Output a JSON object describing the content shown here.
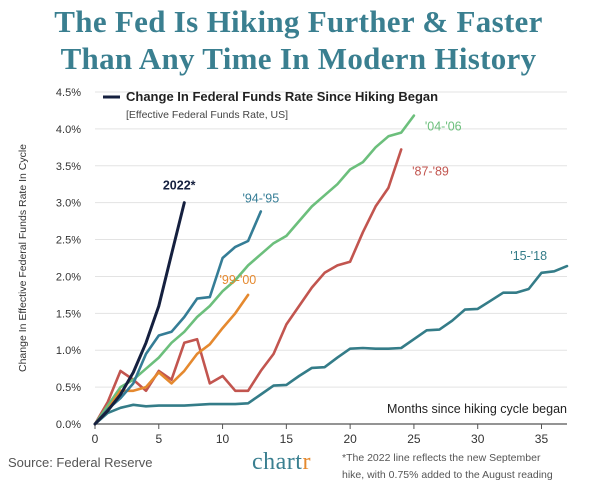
{
  "title": {
    "line1": "The Fed Is Hiking Further & Faster",
    "line2": "Than Any Time In Modern History"
  },
  "source": "Source: Federal Reserve",
  "logo": {
    "text_main": "chart",
    "text_accent": "r"
  },
  "footnote": {
    "line1": "*The 2022 line reflects the new September",
    "line2": "hike, with 0.75% added to the August reading"
  },
  "colors": {
    "title": "#3a7f90",
    "s2022": "#15203f",
    "s9495": "#357d96",
    "s9900": "#e5892f",
    "s8789": "#c2554f",
    "s0406": "#6cbf7c",
    "s1518": "#347c88",
    "axis_text": "#333333",
    "grid": "#e3e3e3"
  },
  "chart_data": {
    "type": "line",
    "title": "Change In Federal Funds Rate Since Hiking Began",
    "subtitle": "[Effective Federal Funds Rate, US]",
    "xlabel": "Months since hiking cycle began",
    "ylabel": "Change In Effective Federal Funds Rate In Cycle",
    "xlim": [
      0,
      37
    ],
    "ylim": [
      0,
      4.5
    ],
    "xticks": [
      0,
      5,
      10,
      15,
      20,
      25,
      30,
      35
    ],
    "xtick_labels": [
      "0",
      "5",
      "10",
      "15",
      "20",
      "25",
      "30",
      "35"
    ],
    "yticks": [
      0,
      0.5,
      1.0,
      1.5,
      2.0,
      2.5,
      3.0,
      3.5,
      4.0,
      4.5
    ],
    "ytick_labels": [
      "0.0%",
      "0.5%",
      "1.0%",
      "1.5%",
      "2.0%",
      "2.5%",
      "3.0%",
      "3.5%",
      "4.0%",
      "4.5%"
    ],
    "series": [
      {
        "name": "2022*",
        "color_key": "s2022",
        "x": [
          0,
          1,
          2,
          3,
          4,
          5,
          6,
          7
        ],
        "y": [
          0,
          0.18,
          0.4,
          0.7,
          1.1,
          1.6,
          2.3,
          3.0
        ]
      },
      {
        "name": "'94-'95",
        "color_key": "s9495",
        "x": [
          0,
          1,
          2,
          3,
          4,
          5,
          6,
          7,
          8,
          9,
          10,
          11,
          12,
          13
        ],
        "y": [
          0,
          0.2,
          0.35,
          0.55,
          0.95,
          1.2,
          1.25,
          1.45,
          1.7,
          1.72,
          2.25,
          2.4,
          2.48,
          2.88
        ]
      },
      {
        "name": "'99-'00",
        "color_key": "s9900",
        "x": [
          0,
          1,
          2,
          3,
          4,
          5,
          6,
          7,
          8,
          9,
          10,
          11,
          12
        ],
        "y": [
          0,
          0.2,
          0.45,
          0.45,
          0.5,
          0.7,
          0.55,
          0.72,
          0.95,
          1.08,
          1.3,
          1.5,
          1.75
        ]
      },
      {
        "name": "'87-'89",
        "color_key": "s8789",
        "x": [
          0,
          1,
          2,
          3,
          4,
          5,
          6,
          7,
          8,
          9,
          10,
          11,
          12,
          13,
          14,
          15,
          16,
          17,
          18,
          19,
          20,
          21,
          22,
          23,
          24
        ],
        "y": [
          0,
          0.3,
          0.72,
          0.6,
          0.45,
          0.72,
          0.6,
          1.1,
          1.15,
          0.55,
          0.65,
          0.45,
          0.45,
          0.72,
          0.95,
          1.35,
          1.6,
          1.85,
          2.05,
          2.15,
          2.2,
          2.6,
          2.95,
          3.2,
          3.72
        ]
      },
      {
        "name": "'04-'06",
        "color_key": "s0406",
        "x": [
          0,
          1,
          2,
          3,
          4,
          5,
          6,
          7,
          8,
          9,
          10,
          11,
          12,
          13,
          14,
          15,
          16,
          17,
          18,
          19,
          20,
          21,
          22,
          23,
          24,
          25
        ],
        "y": [
          0,
          0.25,
          0.5,
          0.6,
          0.75,
          0.9,
          1.1,
          1.25,
          1.45,
          1.6,
          1.8,
          1.95,
          2.15,
          2.3,
          2.45,
          2.55,
          2.75,
          2.95,
          3.1,
          3.25,
          3.45,
          3.55,
          3.75,
          3.9,
          3.95,
          4.18
        ]
      },
      {
        "name": "'15-'18",
        "color_key": "s1518",
        "x": [
          0,
          1,
          2,
          3,
          4,
          5,
          6,
          7,
          8,
          9,
          10,
          11,
          12,
          13,
          14,
          15,
          16,
          17,
          18,
          19,
          20,
          21,
          22,
          23,
          24,
          25,
          26,
          27,
          28,
          29,
          30,
          31,
          32,
          33,
          34,
          35,
          36,
          37
        ],
        "y": [
          0,
          0.15,
          0.22,
          0.26,
          0.24,
          0.25,
          0.25,
          0.25,
          0.26,
          0.27,
          0.27,
          0.27,
          0.28,
          0.4,
          0.52,
          0.53,
          0.65,
          0.76,
          0.77,
          0.9,
          1.02,
          1.03,
          1.02,
          1.02,
          1.03,
          1.15,
          1.27,
          1.28,
          1.4,
          1.55,
          1.56,
          1.67,
          1.78,
          1.78,
          1.83,
          2.05,
          2.07,
          2.14
        ]
      }
    ],
    "series_labels": [
      {
        "text": "2022*",
        "color_key": "s2022"
      },
      {
        "text": "'94-'95",
        "color_key": "s9495"
      },
      {
        "text": "'99-'00",
        "color_key": "s9900"
      },
      {
        "text": "'87-'89",
        "color_key": "s8789"
      },
      {
        "text": "'04-'06",
        "color_key": "s0406"
      },
      {
        "text": "'15-'18",
        "color_key": "s1518"
      }
    ],
    "grid": true,
    "legend": "none"
  }
}
